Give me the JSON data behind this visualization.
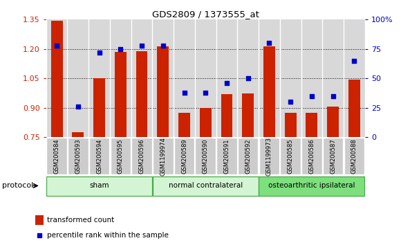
{
  "title": "GDS2809 / 1373555_at",
  "samples": [
    "GSM200584",
    "GSM200593",
    "GSM200594",
    "GSM200595",
    "GSM200596",
    "GSM1199974",
    "GSM200589",
    "GSM200590",
    "GSM200591",
    "GSM200592",
    "GSM1199973",
    "GSM200585",
    "GSM200586",
    "GSM200587",
    "GSM200588"
  ],
  "bar_values": [
    1.345,
    0.775,
    1.05,
    1.185,
    1.19,
    1.215,
    0.875,
    0.9,
    0.97,
    0.975,
    1.215,
    0.875,
    0.875,
    0.905,
    1.045
  ],
  "dot_values": [
    78,
    26,
    72,
    75,
    78,
    78,
    38,
    38,
    46,
    50,
    80,
    30,
    35,
    35,
    65
  ],
  "ylim_left": [
    0.75,
    1.35
  ],
  "ylim_right": [
    0,
    100
  ],
  "yticks_left": [
    0.75,
    0.9,
    1.05,
    1.2,
    1.35
  ],
  "yticks_right": [
    0,
    25,
    50,
    75,
    100
  ],
  "ytick_labels_right": [
    "0",
    "25",
    "50",
    "75",
    "100%"
  ],
  "group_configs": [
    {
      "start": 0,
      "end": 5,
      "label": "sham",
      "color": "#d4f5d4"
    },
    {
      "start": 5,
      "end": 10,
      "label": "normal contralateral",
      "color": "#d4f5d4"
    },
    {
      "start": 10,
      "end": 15,
      "label": "osteoarthritic ipsilateral",
      "color": "#7de07d"
    }
  ],
  "bar_color": "#cc2200",
  "dot_color": "#0000cc",
  "bar_width": 0.55,
  "plot_bg_color": "#d8d8d8",
  "cell_color": "#c8c8c8",
  "legend_bar_label": "transformed count",
  "legend_dot_label": "percentile rank within the sample",
  "protocol_label": "protocol",
  "gridline_values": [
    0.9,
    1.05,
    1.2
  ]
}
